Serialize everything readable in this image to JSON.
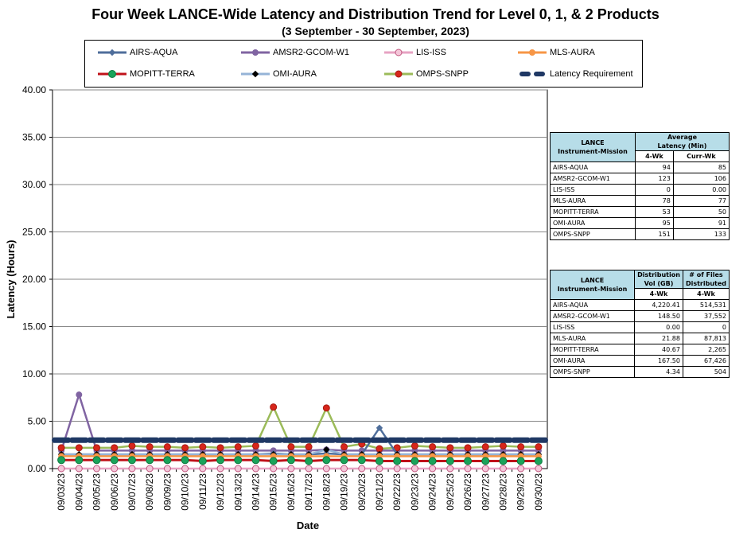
{
  "chart_data": {
    "type": "line",
    "title": "Four Week LANCE-Wide Latency and Distribution Trend for Level 0, 1, & 2 Products",
    "subtitle": "(3  September  -  30  September, 2023)",
    "xlabel": "Date",
    "ylabel": "Latency (Hours)",
    "ylim": [
      0,
      40
    ],
    "yticks": [
      "0.00",
      "5.00",
      "10.00",
      "15.00",
      "20.00",
      "25.00",
      "30.00",
      "35.00",
      "40.00"
    ],
    "grid": true,
    "legend_position": "top",
    "categories": [
      "09/03/23",
      "09/04/23",
      "09/05/23",
      "09/06/23",
      "09/07/23",
      "09/08/23",
      "09/09/23",
      "09/10/23",
      "09/11/23",
      "09/12/23",
      "09/13/23",
      "09/14/23",
      "09/15/23",
      "09/16/23",
      "09/17/23",
      "09/18/23",
      "09/19/23",
      "09/20/23",
      "09/21/23",
      "09/22/23",
      "09/23/23",
      "09/24/23",
      "09/25/23",
      "09/26/23",
      "09/27/23",
      "09/28/23",
      "09/29/23",
      "09/30/23"
    ],
    "series": [
      {
        "name": "AIRS-AQUA",
        "color": "#4f6e9b",
        "marker": "diamond",
        "values": [
          1.5,
          1.5,
          1.5,
          1.5,
          1.5,
          1.5,
          1.5,
          1.5,
          1.5,
          1.5,
          1.5,
          1.5,
          1.6,
          1.5,
          1.5,
          1.6,
          1.5,
          1.5,
          4.3,
          1.5,
          1.5,
          1.5,
          1.5,
          1.5,
          1.5,
          1.5,
          1.5,
          1.5
        ]
      },
      {
        "name": "AMSR2-GCOM-W1",
        "color": "#8064a2",
        "marker": "circle",
        "values": [
          1.9,
          7.8,
          1.9,
          1.9,
          1.9,
          1.9,
          1.9,
          1.9,
          1.9,
          1.9,
          1.9,
          1.9,
          1.9,
          1.9,
          1.9,
          2.0,
          1.9,
          1.9,
          1.9,
          1.9,
          1.9,
          1.9,
          1.9,
          1.9,
          1.9,
          1.9,
          1.9,
          1.9
        ]
      },
      {
        "name": "LIS-ISS",
        "color": "#e7a3c3",
        "marker": "circle-open",
        "values": [
          0,
          0,
          0,
          0,
          0,
          0,
          0,
          0,
          0,
          0,
          0,
          0,
          0,
          0,
          0,
          0,
          0,
          0,
          0,
          0,
          0,
          0,
          0,
          0,
          0,
          0,
          0,
          0
        ]
      },
      {
        "name": "MLS-AURA",
        "color": "#f79646",
        "marker": "circle",
        "values": [
          1.3,
          1.3,
          1.3,
          1.3,
          1.3,
          1.3,
          1.3,
          1.3,
          1.3,
          1.3,
          1.3,
          1.3,
          1.3,
          1.3,
          1.3,
          1.3,
          1.3,
          1.3,
          1.3,
          1.3,
          1.3,
          1.3,
          1.3,
          1.3,
          1.3,
          1.3,
          1.3,
          1.3
        ]
      },
      {
        "name": "MOPITT-TERRA",
        "color": "#c0121a",
        "marker": "circle-green",
        "values": [
          0.9,
          0.9,
          0.9,
          0.9,
          0.9,
          0.9,
          0.9,
          0.9,
          0.8,
          0.9,
          0.9,
          0.9,
          0.8,
          0.9,
          0.8,
          0.9,
          0.9,
          0.9,
          0.8,
          0.8,
          0.8,
          0.8,
          0.8,
          0.8,
          0.8,
          0.8,
          0.8,
          0.8
        ]
      },
      {
        "name": "OMI-AURA",
        "color": "#95b3d7",
        "marker": "diamond-black",
        "values": [
          1.5,
          1.5,
          1.5,
          1.5,
          1.5,
          1.5,
          1.5,
          1.5,
          1.5,
          1.5,
          1.5,
          1.5,
          1.5,
          1.5,
          1.5,
          2.0,
          1.5,
          1.5,
          1.5,
          1.5,
          1.5,
          1.5,
          1.5,
          1.5,
          1.5,
          1.5,
          1.5,
          1.5
        ]
      },
      {
        "name": "OMPS-SNPP",
        "color": "#9bbb59",
        "marker": "circle-red",
        "values": [
          2.2,
          2.2,
          2.2,
          2.2,
          2.4,
          2.3,
          2.3,
          2.2,
          2.3,
          2.2,
          2.3,
          2.4,
          6.5,
          2.3,
          2.3,
          6.4,
          2.3,
          2.6,
          2.1,
          2.2,
          2.4,
          2.3,
          2.2,
          2.2,
          2.3,
          2.4,
          2.3,
          2.3
        ]
      },
      {
        "name": "Latency Requirement",
        "color": "#1f3864",
        "marker": "dash",
        "values": [
          3,
          3,
          3,
          3,
          3,
          3,
          3,
          3,
          3,
          3,
          3,
          3,
          3,
          3,
          3,
          3,
          3,
          3,
          3,
          3,
          3,
          3,
          3,
          3,
          3,
          3,
          3,
          3
        ]
      }
    ]
  },
  "table_latency": {
    "col1_header": "LANCE\nInstrument-Mission",
    "col2_header": "Average\nLatency (Min)",
    "sub_4wk": "4-Wk",
    "sub_curr": "Curr-Wk",
    "rows": [
      {
        "name": "AIRS-AQUA",
        "wk4": "94",
        "curr": "85"
      },
      {
        "name": "AMSR2-GCOM-W1",
        "wk4": "123",
        "curr": "106"
      },
      {
        "name": "LIS-ISS",
        "wk4": "0",
        "curr": "0.00"
      },
      {
        "name": "MLS-AURA",
        "wk4": "78",
        "curr": "77"
      },
      {
        "name": "MOPITT-TERRA",
        "wk4": "53",
        "curr": "50"
      },
      {
        "name": "OMI-AURA",
        "wk4": "95",
        "curr": "91"
      },
      {
        "name": "OMPS-SNPP",
        "wk4": "151",
        "curr": "133"
      }
    ]
  },
  "table_distribution": {
    "col1_header": "LANCE\nInstrument-Mission",
    "col2_header": "Distribution\nVol (GB)",
    "col3_header": "# of Files\nDistributed",
    "sub_4wk_a": "4-Wk",
    "sub_4wk_b": "4-Wk",
    "rows": [
      {
        "name": "AIRS-AQUA",
        "vol": "4,220.41",
        "files": "514,531"
      },
      {
        "name": "AMSR2-GCOM-W1",
        "vol": "148.50",
        "files": "37,552"
      },
      {
        "name": "LIS-ISS",
        "vol": "0.00",
        "files": "0"
      },
      {
        "name": "MLS-AURA",
        "vol": "21.88",
        "files": "87,813"
      },
      {
        "name": "MOPITT-TERRA",
        "vol": "40.67",
        "files": "2,265"
      },
      {
        "name": "OMI-AURA",
        "vol": "167.50",
        "files": "67,426"
      },
      {
        "name": "OMPS-SNPP",
        "vol": "4.34",
        "files": "504"
      }
    ]
  }
}
